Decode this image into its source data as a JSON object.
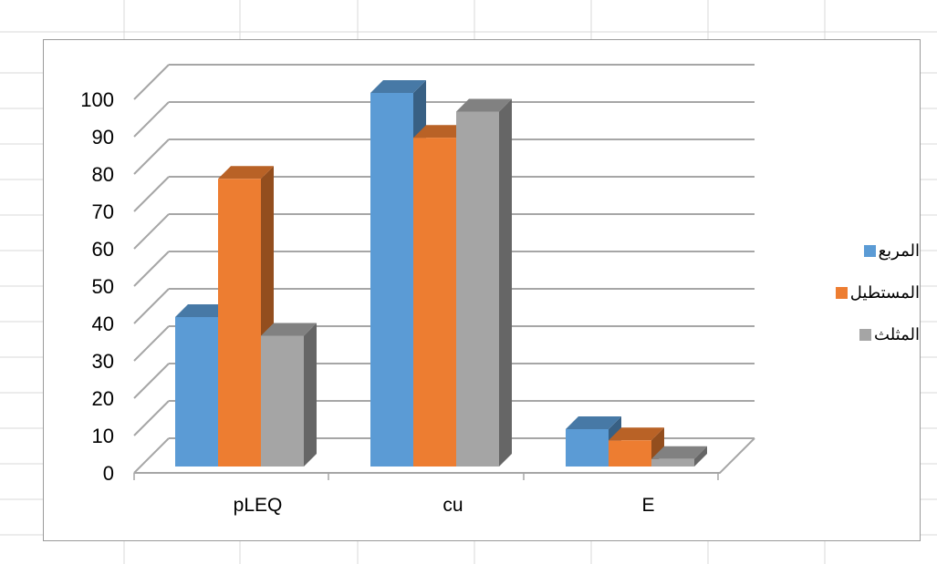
{
  "chart_data": {
    "type": "bar",
    "categories": [
      "pLEQ",
      "cu",
      "E"
    ],
    "series": [
      {
        "name": "المربع",
        "values": [
          40,
          100,
          10
        ],
        "color": "#5b9bd5"
      },
      {
        "name": "المستطيل",
        "values": [
          77,
          88,
          7
        ],
        "color": "#ed7d31"
      },
      {
        "name": "المثلث",
        "values": [
          35,
          95,
          2
        ],
        "color": "#a5a5a5"
      }
    ],
    "ylim": [
      0,
      100
    ],
    "yticks": [
      "0",
      "10",
      "20",
      "30",
      "40",
      "50",
      "60",
      "70",
      "80",
      "90",
      "100"
    ],
    "grid": true,
    "three_d": true,
    "legend_position": "right"
  }
}
